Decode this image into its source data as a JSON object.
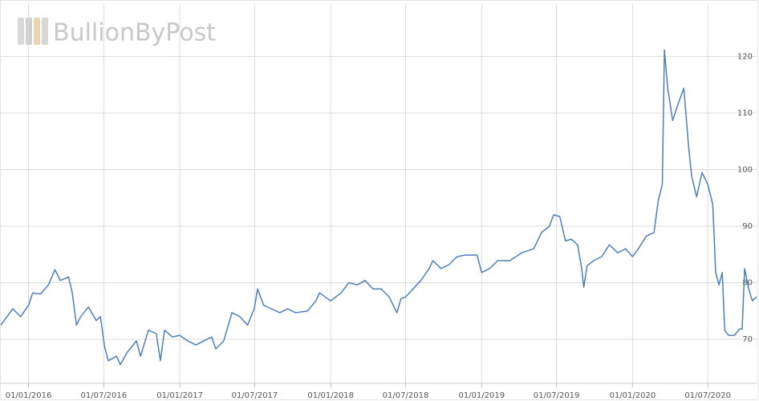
{
  "chart_data": {
    "type": "line",
    "watermark": "BullionByPost",
    "x": [
      "2015-10-26",
      "2015-11-24",
      "2015-12-13",
      "2016-01-01",
      "2016-01-11",
      "2016-01-30",
      "2016-02-18",
      "2016-03-05",
      "2016-03-18",
      "2016-04-07",
      "2016-04-16",
      "2016-04-26",
      "2016-05-06",
      "2016-05-25",
      "2016-06-13",
      "2016-06-23",
      "2016-07-03",
      "2016-07-12",
      "2016-08-01",
      "2016-08-10",
      "2016-08-26",
      "2016-09-18",
      "2016-09-28",
      "2016-10-17",
      "2016-11-05",
      "2016-11-15",
      "2016-11-25",
      "2016-12-14",
      "2017-01-01",
      "2017-01-20",
      "2017-02-09",
      "2017-02-28",
      "2017-03-19",
      "2017-03-29",
      "2017-04-17",
      "2017-05-07",
      "2017-05-26",
      "2017-06-14",
      "2017-06-30",
      "2017-07-08",
      "2017-07-23",
      "2017-08-11",
      "2017-08-31",
      "2017-09-19",
      "2017-10-08",
      "2017-11-06",
      "2017-11-26",
      "2017-12-05",
      "2018-01-01",
      "2018-01-26",
      "2018-02-14",
      "2018-03-06",
      "2018-03-25",
      "2018-04-13",
      "2018-05-03",
      "2018-05-22",
      "2018-06-10",
      "2018-06-20",
      "2018-07-01",
      "2018-07-19",
      "2018-08-07",
      "2018-08-27",
      "2018-09-05",
      "2018-09-25",
      "2018-10-14",
      "2018-11-02",
      "2018-11-22",
      "2018-12-21",
      "2019-01-01",
      "2019-01-20",
      "2019-02-09",
      "2019-03-10",
      "2019-04-08",
      "2019-05-07",
      "2019-05-26",
      "2019-06-14",
      "2019-06-24",
      "2019-07-09",
      "2019-07-23",
      "2019-08-06",
      "2019-08-21",
      "2019-08-31",
      "2019-09-05",
      "2019-09-13",
      "2019-09-29",
      "2019-10-18",
      "2019-11-06",
      "2019-11-26",
      "2019-12-15",
      "2020-01-01",
      "2020-01-15",
      "2020-02-03",
      "2020-02-22",
      "2020-03-03",
      "2020-03-13",
      "2020-03-18",
      "2020-03-26",
      "2020-04-07",
      "2020-04-20",
      "2020-05-04",
      "2020-05-15",
      "2020-05-23",
      "2020-06-04",
      "2020-06-17",
      "2020-07-01",
      "2020-07-13",
      "2020-07-20",
      "2020-07-28",
      "2020-08-05",
      "2020-08-11",
      "2020-08-20",
      "2020-09-03",
      "2020-09-16",
      "2020-09-22",
      "2020-09-28",
      "2020-10-08",
      "2020-10-17",
      "2020-10-27"
    ],
    "series": [
      {
        "color": "#4f7fb8",
        "values": [
          72.5,
          75.4,
          74,
          76,
          78.2,
          78,
          79.6,
          82.3,
          80.4,
          81,
          78.2,
          72.5,
          74,
          75.7,
          73.3,
          74,
          68.7,
          66.2,
          67,
          65.5,
          67.6,
          69.7,
          67,
          71.6,
          71,
          66.2,
          71.6,
          70.4,
          70.7,
          69.7,
          69,
          69.7,
          70.4,
          68.3,
          69.7,
          74.7,
          74,
          72.5,
          75.4,
          78.9,
          76,
          75.4,
          74.7,
          75.4,
          74.7,
          75,
          76.8,
          78.2,
          76.8,
          78.2,
          80,
          79.6,
          80.4,
          78.9,
          78.9,
          77.5,
          74.7,
          77.2,
          77.5,
          78.9,
          80.4,
          82.5,
          83.9,
          82.5,
          83.2,
          84.6,
          84.9,
          84.9,
          81.8,
          82.5,
          83.9,
          83.9,
          85.3,
          86,
          88.9,
          90,
          92,
          91.7,
          87.4,
          87.7,
          86.7,
          82.5,
          79.2,
          83,
          83.9,
          84.6,
          86.7,
          85.3,
          86,
          84.6,
          86,
          88.2,
          88.9,
          94.5,
          97.4,
          121.2,
          114.4,
          108.7,
          111.6,
          114.4,
          104.5,
          98.8,
          95.2,
          99.5,
          97.4,
          93.8,
          81.8,
          79.6,
          81.8,
          71.6,
          70.7,
          70.7,
          71.8,
          71.8,
          82.5,
          78.9,
          76.8,
          77.5
        ]
      }
    ],
    "xlim": [
      "2015-10-26",
      "2020-10-27"
    ],
    "xticks": [
      {
        "value": "2016-01-01",
        "label": "01/01/2016"
      },
      {
        "value": "2016-07-01",
        "label": "01/07/2016"
      },
      {
        "value": "2017-01-01",
        "label": "01/01/2017"
      },
      {
        "value": "2017-07-01",
        "label": "01/07/2017"
      },
      {
        "value": "2018-01-01",
        "label": "01/01/2018"
      },
      {
        "value": "2018-07-01",
        "label": "01/07/2018"
      },
      {
        "value": "2019-01-01",
        "label": "01/01/2019"
      },
      {
        "value": "2019-07-01",
        "label": "01/07/2019"
      },
      {
        "value": "2020-01-01",
        "label": "01/01/2020"
      },
      {
        "value": "2020-07-01",
        "label": "01/07/2020"
      }
    ],
    "ylim": [
      62.2,
      129.3
    ],
    "yticks": [
      70,
      80,
      90,
      100,
      110,
      120
    ],
    "grid": true
  }
}
